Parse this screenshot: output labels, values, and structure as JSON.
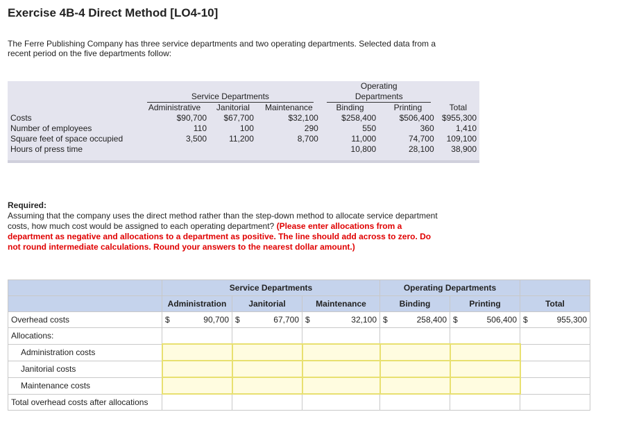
{
  "title": "Exercise 4B-4 Direct Method [LO4-10]",
  "intro": "The Ferre Publishing Company has three service departments and two operating departments. Selected data from a recent period on the five departments follow:",
  "data_table": {
    "group_service": "Service Departments",
    "group_operating_line1": "Operating",
    "group_operating_line2": "Departments",
    "columns": [
      "Administrative",
      "Janitorial",
      "Maintenance",
      "Binding",
      "Printing",
      "Total"
    ],
    "rows": [
      {
        "label": "Costs",
        "values": [
          "$90,700",
          "$67,700",
          "$32,100",
          "$258,400",
          "$506,400",
          "$955,300"
        ]
      },
      {
        "label": "Number of employees",
        "values": [
          "110",
          "100",
          "290",
          "550",
          "360",
          "1,410"
        ]
      },
      {
        "label": "Square feet of space occupied",
        "values": [
          "3,500",
          "11,200",
          "8,700",
          "11,000",
          "74,700",
          "109,100"
        ]
      },
      {
        "label": "Hours of press time",
        "values": [
          "",
          "",
          "",
          "10,800",
          "28,100",
          "38,900"
        ]
      }
    ]
  },
  "required": {
    "heading": "Required:",
    "text": "Assuming that the company uses the direct method rather than the step-down method to allocate service department costs, how much cost would be assigned to each operating department?",
    "instructions": "(Please enter allocations from a department as negative and allocations to a department as positive. The line should add across to zero. Do not round intermediate calculations. Round your answers to the nearest dollar amount.)"
  },
  "answer_table": {
    "group_service": "Service Departments",
    "group_operating": "Operating Departments",
    "columns": [
      "Administration",
      "Janitorial",
      "Maintenance",
      "Binding",
      "Printing",
      "Total"
    ],
    "overhead_label": "Overhead costs",
    "overhead_values": [
      "90,700",
      "67,700",
      "32,100",
      "258,400",
      "506,400",
      "955,300"
    ],
    "currency": "$",
    "allocations_label": "Allocations:",
    "allocation_rows": [
      "Administration costs",
      "Janitorial costs",
      "Maintenance costs"
    ],
    "total_label": "Total overhead costs after allocations"
  }
}
